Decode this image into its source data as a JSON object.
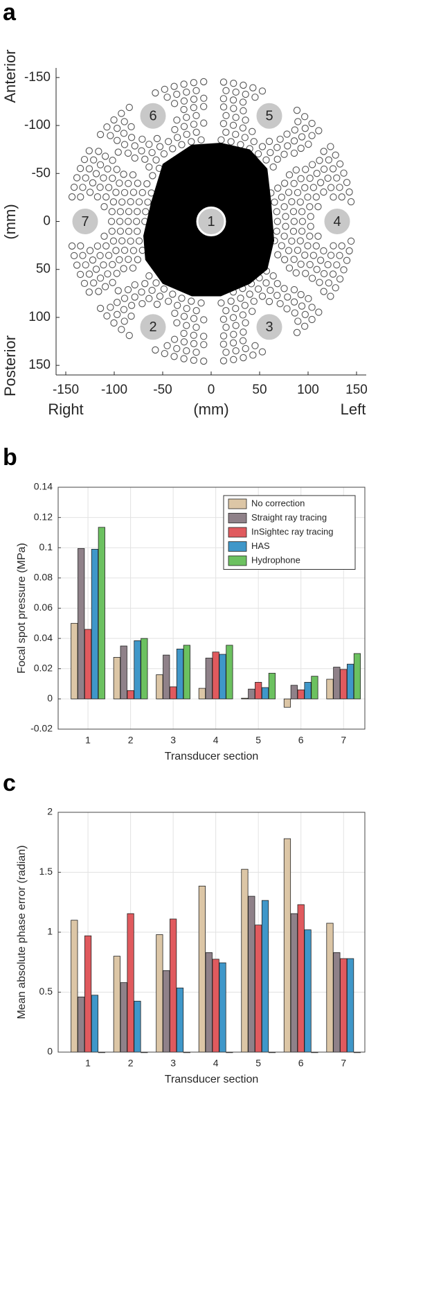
{
  "chart_data": [
    {
      "type": "scatter",
      "label": "a",
      "y_label_top": "Anterior",
      "ylabel": "(mm)",
      "y_label_bottom": "Posterior",
      "x_label_left": "Right",
      "xlabel": "(mm)",
      "x_label_right": "Left",
      "xlim": [
        -160,
        160
      ],
      "xticks": [
        -150,
        -100,
        -50,
        0,
        50,
        100,
        150
      ],
      "ylim": [
        -160,
        160
      ],
      "yticks": [
        -150,
        -100,
        -50,
        0,
        50,
        100,
        150
      ],
      "y_reversed": true,
      "sections": {
        "labels": [
          "1",
          "2",
          "3",
          "4",
          "5",
          "6",
          "7"
        ],
        "x": [
          0,
          -60,
          60,
          130,
          60,
          -60,
          -130
        ],
        "y": [
          0,
          110,
          110,
          0,
          -110,
          -110,
          0
        ]
      },
      "region": {
        "x": [
          -50,
          -20,
          10,
          40,
          58,
          62,
          65,
          58,
          40,
          10,
          -20,
          -50,
          -68,
          -70,
          -62
        ],
        "y": [
          -60,
          -80,
          -82,
          -75,
          -55,
          -20,
          20,
          50,
          65,
          78,
          78,
          65,
          40,
          15,
          -20
        ]
      }
    },
    {
      "type": "bar",
      "label": "b",
      "xlabel": "Transducer section",
      "ylabel": "Focal spot pressure (MPa)",
      "categories": [
        "1",
        "2",
        "3",
        "4",
        "5",
        "6",
        "7"
      ],
      "ylim": [
        -0.02,
        0.14
      ],
      "yticks": [
        -0.02,
        0,
        0.02,
        0.04,
        0.06,
        0.08,
        0.1,
        0.12,
        0.14
      ],
      "grid": true,
      "legend": "top-right",
      "series": [
        {
          "name": "No correction",
          "color": "#dcc6a6",
          "values": [
            0.05,
            0.0275,
            0.016,
            0.007,
            0.0005,
            -0.0055,
            0.013
          ]
        },
        {
          "name": "Straight ray tracing",
          "color": "#8f8189",
          "values": [
            0.0995,
            0.035,
            0.029,
            0.027,
            0.0065,
            0.009,
            0.021
          ]
        },
        {
          "name": "InSightec ray tracing",
          "color": "#e05a5e",
          "values": [
            0.046,
            0.0055,
            0.008,
            0.031,
            0.011,
            0.006,
            0.0195
          ]
        },
        {
          "name": "HAS",
          "color": "#3f97c9",
          "values": [
            0.099,
            0.0385,
            0.033,
            0.0295,
            0.0075,
            0.011,
            0.023
          ]
        },
        {
          "name": "Hydrophone",
          "color": "#6cc160",
          "values": [
            0.1135,
            0.04,
            0.0355,
            0.0355,
            0.017,
            0.015,
            0.03
          ]
        }
      ]
    },
    {
      "type": "bar",
      "label": "c",
      "xlabel": "Transducer section",
      "ylabel": "Mean absolute phase error (radian)",
      "categories": [
        "1",
        "2",
        "3",
        "4",
        "5",
        "6",
        "7"
      ],
      "ylim": [
        0,
        2
      ],
      "yticks": [
        0,
        0.5,
        1,
        1.5,
        2
      ],
      "grid": true,
      "series": [
        {
          "color": "#dcc6a6",
          "values": [
            1.1,
            0.8,
            0.98,
            1.385,
            1.525,
            1.78,
            1.075
          ]
        },
        {
          "color": "#8f8189",
          "values": [
            0.46,
            0.58,
            0.68,
            0.83,
            1.3,
            1.155,
            0.83
          ]
        },
        {
          "color": "#e05a5e",
          "values": [
            0.97,
            1.155,
            1.11,
            0.775,
            1.06,
            1.23,
            0.78
          ]
        },
        {
          "color": "#3f97c9",
          "values": [
            0.475,
            0.425,
            0.535,
            0.745,
            1.265,
            1.02,
            0.78
          ]
        },
        {
          "color": "#6cc160",
          "values": [
            0,
            0,
            0,
            0,
            0,
            0,
            0
          ]
        }
      ]
    }
  ]
}
